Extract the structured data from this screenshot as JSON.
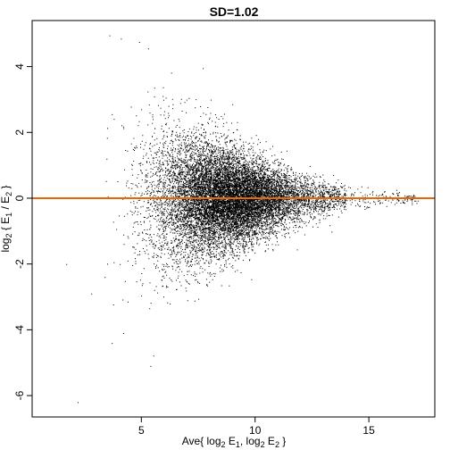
{
  "chart_data": {
    "type": "scatter",
    "title": "SD=1.02",
    "xlabel": {
      "prefix": "Ave{ log",
      "sub1": "2",
      "mid1": " E",
      "sub2": "1",
      "mid2": ", log",
      "sub3": "2",
      "mid3": " E",
      "sub4": "2",
      "suffix": " }"
    },
    "ylabel": {
      "prefix": "log",
      "sub1": "2",
      "mid1": " { E",
      "sub2": "1",
      "mid2": " / E",
      "sub3": "2",
      "suffix": " }"
    },
    "xlim": [
      0.2,
      17.9
    ],
    "ylim": [
      -6.65,
      5.4
    ],
    "xticks": [
      5,
      10,
      15
    ],
    "yticks": [
      -6,
      -4,
      -2,
      0,
      2,
      4
    ],
    "reference_line": {
      "y": 0,
      "color": "#e8660a"
    },
    "point_color": "#000000",
    "grid": false,
    "legend": "none",
    "n_points_approx": 14000,
    "distribution": {
      "description_values": {
        "x_center": 8.7,
        "x_range": [
          1.1,
          17.2
        ],
        "y_center": 0,
        "y_max": 4.95,
        "y_min": -6.2,
        "y_sd_at_low_x": 1.5,
        "y_sd_at_high_x": 0.1
      }
    },
    "outliers": [
      {
        "x": 3.6,
        "y": 4.95
      },
      {
        "x": 4.1,
        "y": 4.85
      },
      {
        "x": 4.9,
        "y": 4.75
      },
      {
        "x": 5.3,
        "y": 4.55
      },
      {
        "x": 3.7,
        "y": -4.4
      },
      {
        "x": 4.2,
        "y": -4.1
      },
      {
        "x": 5.4,
        "y": -5.1
      },
      {
        "x": 2.2,
        "y": -6.2
      },
      {
        "x": 1.7,
        "y": -2.0
      },
      {
        "x": 2.8,
        "y": -2.9
      },
      {
        "x": 1.1,
        "y": 0.0
      },
      {
        "x": 7.7,
        "y": 3.95
      }
    ]
  }
}
